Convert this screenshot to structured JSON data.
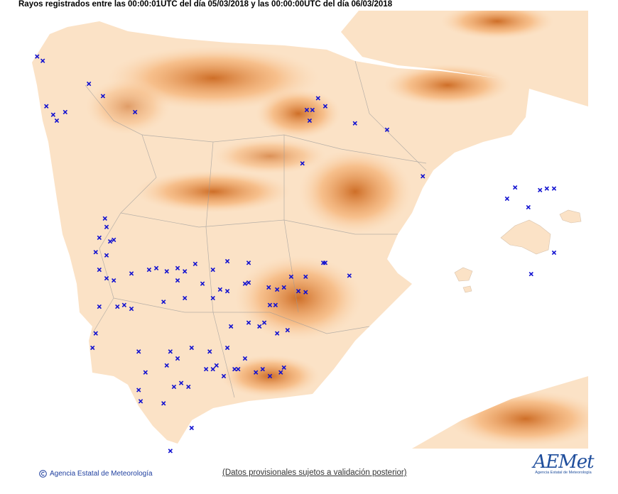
{
  "header": {
    "title": "Rayos registrados entre las 00:00:01UTC del día 05/03/2018 y las 00:00:00UTC del día 06/03/2018"
  },
  "footer": {
    "copyright": "Agencia Estatal de Meteorología",
    "notice": "(Datos provisionales sujetos a validación posterior)",
    "logo": "AEMet",
    "logo_subtitle": "Agencia Estatal de Meteorología"
  },
  "strikes": [
    [
      -9.26,
      43.24
    ],
    [
      -9.12,
      43.16
    ],
    [
      -7.97,
      42.73
    ],
    [
      -7.62,
      42.5
    ],
    [
      -9.03,
      42.31
    ],
    [
      -8.86,
      42.15
    ],
    [
      -8.77,
      42.04
    ],
    [
      -8.56,
      42.2
    ],
    [
      -6.82,
      42.2
    ],
    [
      -2.26,
      42.46
    ],
    [
      -2.08,
      42.31
    ],
    [
      -2.54,
      42.24
    ],
    [
      -2.4,
      42.24
    ],
    [
      -2.47,
      42.04
    ],
    [
      -1.34,
      41.99
    ],
    [
      -0.54,
      41.87
    ],
    [
      -2.65,
      41.24
    ],
    [
      0.35,
      41.0
    ],
    [
      2.45,
      40.58
    ],
    [
      2.65,
      40.79
    ],
    [
      3.27,
      40.74
    ],
    [
      3.44,
      40.77
    ],
    [
      3.62,
      40.77
    ],
    [
      2.98,
      40.42
    ],
    [
      3.62,
      39.57
    ],
    [
      3.05,
      39.17
    ],
    [
      -7.57,
      40.21
    ],
    [
      -7.53,
      40.05
    ],
    [
      -7.71,
      39.85
    ],
    [
      -7.44,
      39.78
    ],
    [
      -7.35,
      39.81
    ],
    [
      -7.8,
      39.58
    ],
    [
      -7.53,
      39.52
    ],
    [
      -7.71,
      39.25
    ],
    [
      -7.53,
      39.09
    ],
    [
      -7.35,
      39.05
    ],
    [
      -6.91,
      39.18
    ],
    [
      -6.47,
      39.25
    ],
    [
      -6.29,
      39.28
    ],
    [
      -6.03,
      39.22
    ],
    [
      -5.76,
      39.28
    ],
    [
      -5.58,
      39.22
    ],
    [
      -5.76,
      39.05
    ],
    [
      -5.32,
      39.36
    ],
    [
      -4.88,
      39.25
    ],
    [
      -4.52,
      39.41
    ],
    [
      -3.99,
      39.38
    ],
    [
      -2.13,
      39.38
    ],
    [
      -2.08,
      39.38
    ],
    [
      -1.48,
      39.14
    ],
    [
      -2.93,
      39.12
    ],
    [
      -2.57,
      39.12
    ],
    [
      -2.75,
      38.85
    ],
    [
      -2.57,
      38.83
    ],
    [
      -3.49,
      38.92
    ],
    [
      -3.28,
      38.88
    ],
    [
      -3.11,
      38.92
    ],
    [
      -4.08,
      38.99
    ],
    [
      -3.99,
      39.01
    ],
    [
      -4.7,
      38.88
    ],
    [
      -4.52,
      38.85
    ],
    [
      -4.88,
      38.72
    ],
    [
      -5.14,
      38.99
    ],
    [
      -5.58,
      38.72
    ],
    [
      -6.11,
      38.65
    ],
    [
      -7.09,
      38.59
    ],
    [
      -7.26,
      38.56
    ],
    [
      -6.91,
      38.52
    ],
    [
      -7.71,
      38.56
    ],
    [
      -7.8,
      38.06
    ],
    [
      -7.88,
      37.79
    ],
    [
      -6.73,
      37.72
    ],
    [
      -5.94,
      37.72
    ],
    [
      -5.76,
      37.59
    ],
    [
      -5.41,
      37.79
    ],
    [
      -4.96,
      37.72
    ],
    [
      -4.52,
      37.79
    ],
    [
      -4.88,
      37.39
    ],
    [
      -4.79,
      37.46
    ],
    [
      -5.05,
      37.39
    ],
    [
      -4.61,
      37.26
    ],
    [
      -4.34,
      37.39
    ],
    [
      -4.08,
      37.59
    ],
    [
      -3.81,
      37.33
    ],
    [
      -3.64,
      37.39
    ],
    [
      -3.46,
      37.26
    ],
    [
      -3.19,
      37.33
    ],
    [
      -3.11,
      37.42
    ],
    [
      -3.6,
      38.26
    ],
    [
      -3.72,
      38.19
    ],
    [
      -3.99,
      38.26
    ],
    [
      -4.43,
      38.19
    ],
    [
      -3.28,
      38.06
    ],
    [
      -3.02,
      38.12
    ],
    [
      -3.46,
      38.59
    ],
    [
      -3.32,
      38.59
    ],
    [
      -6.56,
      37.33
    ],
    [
      -6.03,
      37.46
    ],
    [
      -5.85,
      37.06
    ],
    [
      -5.67,
      37.13
    ],
    [
      -5.49,
      37.06
    ],
    [
      -6.73,
      37.0
    ],
    [
      -6.68,
      36.79
    ],
    [
      -6.11,
      36.75
    ],
    [
      -5.41,
      36.29
    ],
    [
      -5.94,
      35.86
    ],
    [
      -4.25,
      37.39
    ]
  ]
}
